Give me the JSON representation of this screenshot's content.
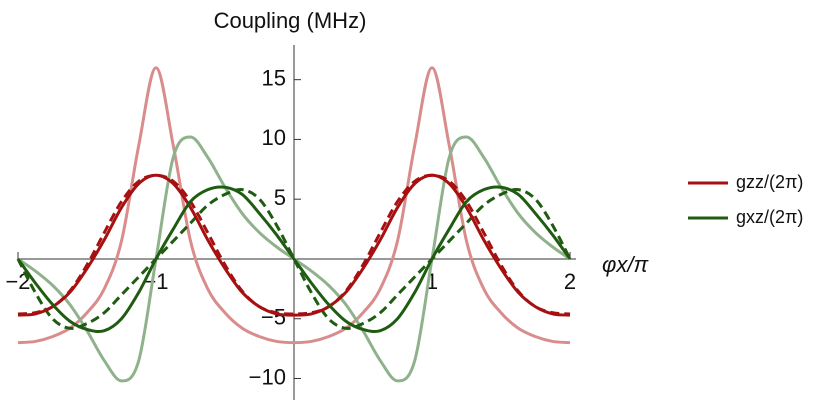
{
  "chart_data": {
    "type": "line",
    "title": "Coupling (MHz)",
    "x_label": "φx/π",
    "x": [
      -2,
      -1.875,
      -1.75,
      -1.625,
      -1.5,
      -1.375,
      -1.25,
      -1.125,
      -1,
      -0.875,
      -0.75,
      -0.625,
      -0.5,
      -0.375,
      -0.25,
      -0.125,
      0,
      0.125,
      0.25,
      0.375,
      0.5,
      0.625,
      0.75,
      0.875,
      1,
      1.125,
      1.25,
      1.375,
      1.5,
      1.625,
      1.75,
      1.875,
      2
    ],
    "series": [
      {
        "color": "#d98c8c",
        "values": [
          -7,
          -6.9,
          -6.5,
          -5.8,
          -4.5,
          -2.5,
          1.5,
          9.5,
          16,
          9.5,
          1.5,
          -2.5,
          -4.5,
          -5.8,
          -6.5,
          -6.9,
          -7,
          -6.9,
          -6.5,
          -5.8,
          -4.5,
          -2.5,
          1.5,
          9.5,
          16,
          9.5,
          1.5,
          -2.5,
          -4.5,
          -5.8,
          -6.5,
          -6.9,
          -7
        ]
      },
      {
        "color": "#8fb28c",
        "values": [
          0,
          -1,
          -2.2,
          -3.8,
          -6,
          -8.5,
          -10.2,
          -8.5,
          0,
          8.5,
          10.2,
          8.5,
          6,
          3.8,
          2.2,
          1,
          0,
          -1,
          -2.2,
          -3.8,
          -6,
          -8.5,
          -10.2,
          -8.5,
          0,
          8.5,
          10.2,
          8.5,
          6,
          3.8,
          2.2,
          1,
          0
        ]
      },
      {
        "color": "#a61010",
        "dashed": true,
        "values": [
          -4.6,
          -4.5,
          -4,
          -2.7,
          -0.5,
          2.2,
          4.8,
          6.5,
          7,
          6.5,
          4.8,
          2.2,
          -0.5,
          -2.7,
          -4,
          -4.5,
          -4.6,
          -4.5,
          -4,
          -2.7,
          -0.5,
          2.2,
          4.8,
          6.5,
          7,
          6.5,
          4.8,
          2.2,
          -0.5,
          -2.7,
          -4,
          -4.5,
          -4.6
        ]
      },
      {
        "color": "#1f5c12",
        "dashed": true,
        "values": [
          0,
          -2.8,
          -5,
          -5.8,
          -5.4,
          -4.5,
          -3,
          -1.5,
          0,
          1.5,
          3,
          4.5,
          5.4,
          5.8,
          5,
          2.8,
          0,
          -2.8,
          -5,
          -5.8,
          -5.4,
          -4.5,
          -3,
          -1.5,
          0,
          1.5,
          3,
          4.5,
          5.4,
          5.8,
          5,
          2.8,
          0
        ]
      },
      {
        "name": "gzz/(2π)",
        "color": "#a61010",
        "values": [
          -4.7,
          -4.6,
          -4,
          -2.8,
          -0.8,
          1.6,
          4.3,
          6.3,
          7,
          6.3,
          4.3,
          1.6,
          -0.8,
          -2.8,
          -4,
          -4.6,
          -4.7,
          -4.6,
          -4,
          -2.8,
          -0.8,
          1.6,
          4.3,
          6.3,
          7,
          6.3,
          4.3,
          1.6,
          -0.8,
          -2.8,
          -4,
          -4.6,
          -4.7
        ]
      },
      {
        "name": "gxz/(2π)",
        "color": "#1f5c12",
        "values": [
          0,
          -2,
          -3.8,
          -5.2,
          -5.9,
          -6,
          -5,
          -2.8,
          0,
          2.5,
          4.8,
          5.8,
          6,
          5.4,
          3.8,
          2,
          0,
          -2,
          -3.8,
          -5.2,
          -5.9,
          -6,
          -5,
          -2.8,
          0,
          2.5,
          4.8,
          5.8,
          6,
          5.4,
          3.8,
          2,
          0
        ]
      }
    ],
    "xlim": [
      -2,
      2
    ],
    "ylim": [
      -11.8,
      17.9
    ],
    "xticks": [
      {
        "value": -2,
        "label": "−2"
      },
      {
        "value": -1,
        "label": "−1"
      },
      1,
      2
    ],
    "yticks": [
      {
        "value": -10,
        "label": "−10"
      },
      {
        "value": -5,
        "label": "−5"
      },
      5,
      10,
      15
    ]
  }
}
